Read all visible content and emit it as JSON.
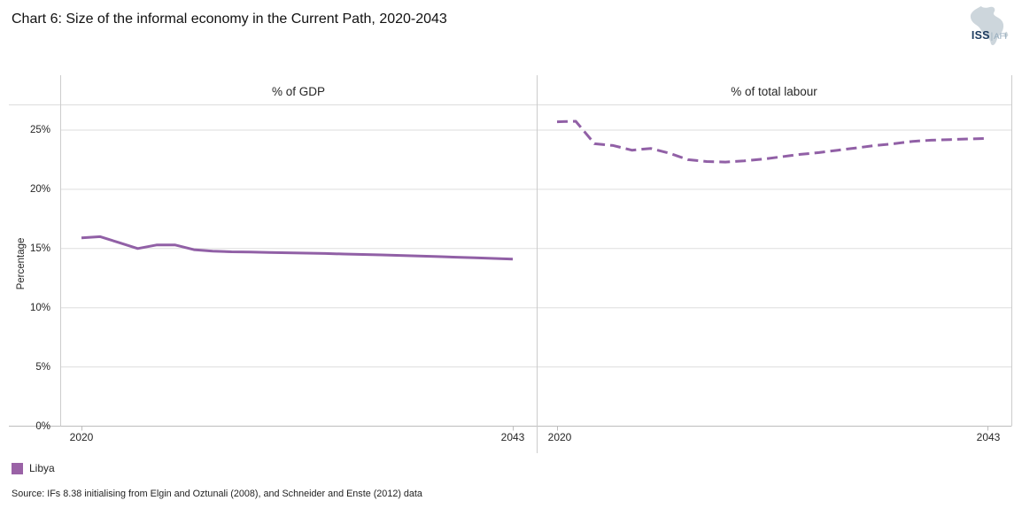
{
  "title": "Chart 6: Size of the informal economy in the Current Path, 2020-2043",
  "logo": {
    "org": "ISS",
    "separator": "|",
    "unit": "AFI"
  },
  "legend": {
    "label": "Libya",
    "color": "#9a62a6"
  },
  "source_note": "Source: IFs 8.38 initialising  from Elgin and Oztunali (2008), and Schneider and Enste (2012) data",
  "colors": {
    "line": "#9160a6",
    "gridline": "#dddddd",
    "axis": "#bdbdbd",
    "panel_border": "#cccccc"
  },
  "chart_data": [
    {
      "type": "line",
      "title": "% of GDP",
      "ylabel": "Percentage",
      "x_label_start": "2020",
      "x_label_end": "2043",
      "ylim": [
        0,
        29.6
      ],
      "yticks": [
        0,
        5,
        10,
        15,
        20,
        25
      ],
      "ytick_labels": [
        "0%",
        "5%",
        "10%",
        "15%",
        "20%",
        "25%"
      ],
      "grid": "horizontal",
      "legend_position": "bottom-left",
      "series": [
        {
          "name": "Libya",
          "style": "solid",
          "color": "#9160a6",
          "x": [
            2020,
            2021,
            2022,
            2023,
            2024,
            2025,
            2026,
            2027,
            2028,
            2029,
            2030,
            2031,
            2032,
            2033,
            2034,
            2035,
            2036,
            2037,
            2038,
            2039,
            2040,
            2041,
            2042,
            2043
          ],
          "values": [
            15.9,
            16.0,
            15.5,
            15.0,
            15.3,
            15.3,
            14.9,
            14.78,
            14.72,
            14.7,
            14.67,
            14.64,
            14.61,
            14.58,
            14.54,
            14.5,
            14.46,
            14.42,
            14.37,
            14.32,
            14.27,
            14.22,
            14.16,
            14.1
          ]
        }
      ]
    },
    {
      "type": "line",
      "title": "% of total labour",
      "ylabel": "Percentage",
      "x_label_start": "2020",
      "x_label_end": "2043",
      "ylim": [
        0,
        29.6
      ],
      "yticks": [
        0,
        5,
        10,
        15,
        20,
        25
      ],
      "ytick_labels": [
        "0%",
        "5%",
        "10%",
        "15%",
        "20%",
        "25%"
      ],
      "grid": "horizontal",
      "legend_position": "bottom-left",
      "series": [
        {
          "name": "Libya",
          "style": "dashed",
          "color": "#9160a6",
          "x": [
            2020,
            2021,
            2022,
            2023,
            2024,
            2025,
            2026,
            2027,
            2028,
            2029,
            2030,
            2031,
            2032,
            2033,
            2034,
            2035,
            2036,
            2037,
            2038,
            2039,
            2040,
            2041,
            2042,
            2043
          ],
          "values": [
            25.7,
            25.75,
            23.85,
            23.7,
            23.3,
            23.45,
            23.05,
            22.5,
            22.35,
            22.3,
            22.4,
            22.55,
            22.75,
            22.95,
            23.1,
            23.3,
            23.5,
            23.7,
            23.85,
            24.05,
            24.15,
            24.2,
            24.25,
            24.3
          ]
        }
      ]
    }
  ]
}
